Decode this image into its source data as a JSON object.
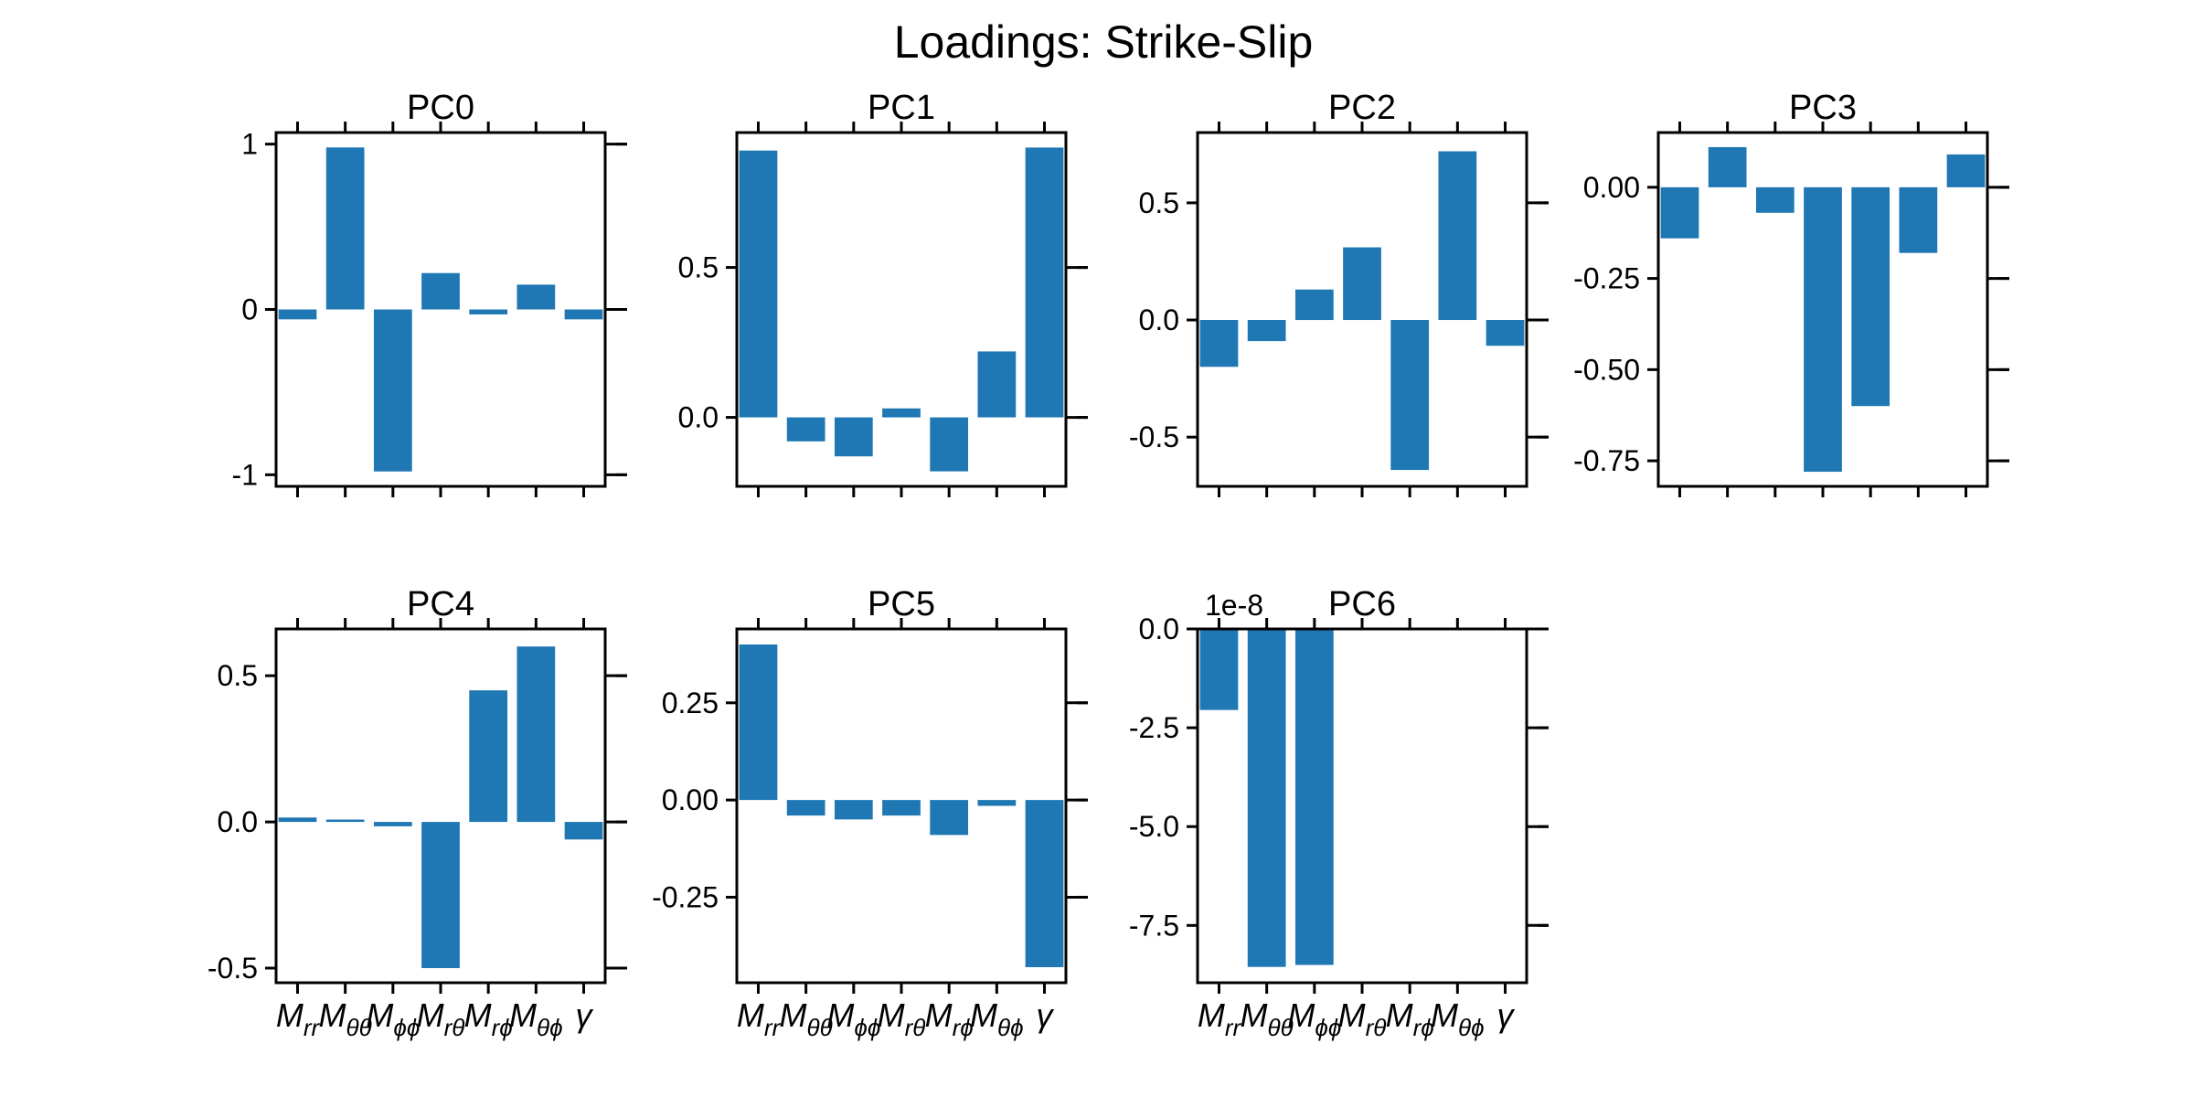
{
  "figure": {
    "title": "Loadings: Strike-Slip",
    "bar_color": "#1f77b4"
  },
  "chart_data": [
    {
      "type": "bar",
      "title": "PC0",
      "categories": [
        "Mrr",
        "Mθθ",
        "Mϕϕ",
        "Mrθ",
        "Mrϕ",
        "Mθϕ",
        "γ"
      ],
      "values": [
        -0.06,
        0.98,
        -0.98,
        0.22,
        -0.03,
        0.15,
        -0.06
      ],
      "ylim": [
        -1.07,
        1.07
      ],
      "yticks": [
        -1,
        0,
        1
      ],
      "ytick_labels": [
        "-1",
        "0",
        "1"
      ],
      "xtick_labels_visible": false,
      "offset_text": ""
    },
    {
      "type": "bar",
      "title": "PC1",
      "categories": [
        "Mrr",
        "Mθθ",
        "Mϕϕ",
        "Mrθ",
        "Mrϕ",
        "Mθϕ",
        "γ"
      ],
      "values": [
        0.89,
        -0.08,
        -0.13,
        0.03,
        -0.18,
        0.22,
        0.9
      ],
      "ylim": [
        -0.23,
        0.95
      ],
      "yticks": [
        0,
        0.5
      ],
      "ytick_labels": [
        "0.0",
        "0.5"
      ],
      "xtick_labels_visible": false,
      "offset_text": ""
    },
    {
      "type": "bar",
      "title": "PC2",
      "categories": [
        "Mrr",
        "Mθθ",
        "Mϕϕ",
        "Mrθ",
        "Mrϕ",
        "Mθϕ",
        "γ"
      ],
      "values": [
        -0.2,
        -0.09,
        0.13,
        0.31,
        -0.64,
        0.72,
        -0.11
      ],
      "ylim": [
        -0.71,
        0.8
      ],
      "yticks": [
        -0.5,
        0,
        0.5
      ],
      "ytick_labels": [
        "-0.5",
        "0.0",
        "0.5"
      ],
      "xtick_labels_visible": false,
      "offset_text": ""
    },
    {
      "type": "bar",
      "title": "PC3",
      "categories": [
        "Mrr",
        "Mθθ",
        "Mϕϕ",
        "Mrθ",
        "Mrϕ",
        "Mθϕ",
        "γ"
      ],
      "values": [
        -0.14,
        0.11,
        -0.07,
        -0.78,
        -0.6,
        -0.18,
        0.09
      ],
      "ylim": [
        -0.82,
        0.15
      ],
      "yticks": [
        -0.75,
        -0.5,
        -0.25,
        0
      ],
      "ytick_labels": [
        "-0.75",
        "-0.50",
        "-0.25",
        "0.00"
      ],
      "xtick_labels_visible": false,
      "offset_text": ""
    },
    {
      "type": "bar",
      "title": "PC4",
      "categories": [
        "Mrr",
        "Mθθ",
        "Mϕϕ",
        "Mrθ",
        "Mrϕ",
        "Mθϕ",
        "γ"
      ],
      "values": [
        0.015,
        0.008,
        -0.015,
        -0.5,
        0.45,
        0.6,
        -0.06
      ],
      "ylim": [
        -0.55,
        0.66
      ],
      "yticks": [
        -0.5,
        0,
        0.5
      ],
      "ytick_labels": [
        "-0.5",
        "0.0",
        "0.5"
      ],
      "xtick_labels_visible": true,
      "offset_text": ""
    },
    {
      "type": "bar",
      "title": "PC5",
      "categories": [
        "Mrr",
        "Mθθ",
        "Mϕϕ",
        "Mrθ",
        "Mrϕ",
        "Mθϕ",
        "γ"
      ],
      "values": [
        0.4,
        -0.04,
        -0.05,
        -0.04,
        -0.09,
        -0.015,
        -0.43
      ],
      "ylim": [
        -0.47,
        0.44
      ],
      "yticks": [
        -0.25,
        0,
        0.25
      ],
      "ytick_labels": [
        "-0.25",
        "0.00",
        "0.25"
      ],
      "xtick_labels_visible": true,
      "offset_text": ""
    },
    {
      "type": "bar",
      "title": "PC6",
      "categories": [
        "Mrr",
        "Mθθ",
        "Mϕϕ",
        "Mrθ",
        "Mrϕ",
        "Mθϕ",
        "γ"
      ],
      "values": [
        -2.05e-08,
        -8.55e-08,
        -8.5e-08,
        0,
        0,
        0,
        0
      ],
      "ylim": [
        -8.95e-08,
        0
      ],
      "yticks": [
        -7.5e-08,
        -5e-08,
        -2.5e-08,
        0
      ],
      "ytick_labels": [
        "-7.5",
        "-5.0",
        "-2.5",
        "0.0"
      ],
      "xtick_labels_visible": true,
      "offset_text": "1e-8"
    }
  ]
}
